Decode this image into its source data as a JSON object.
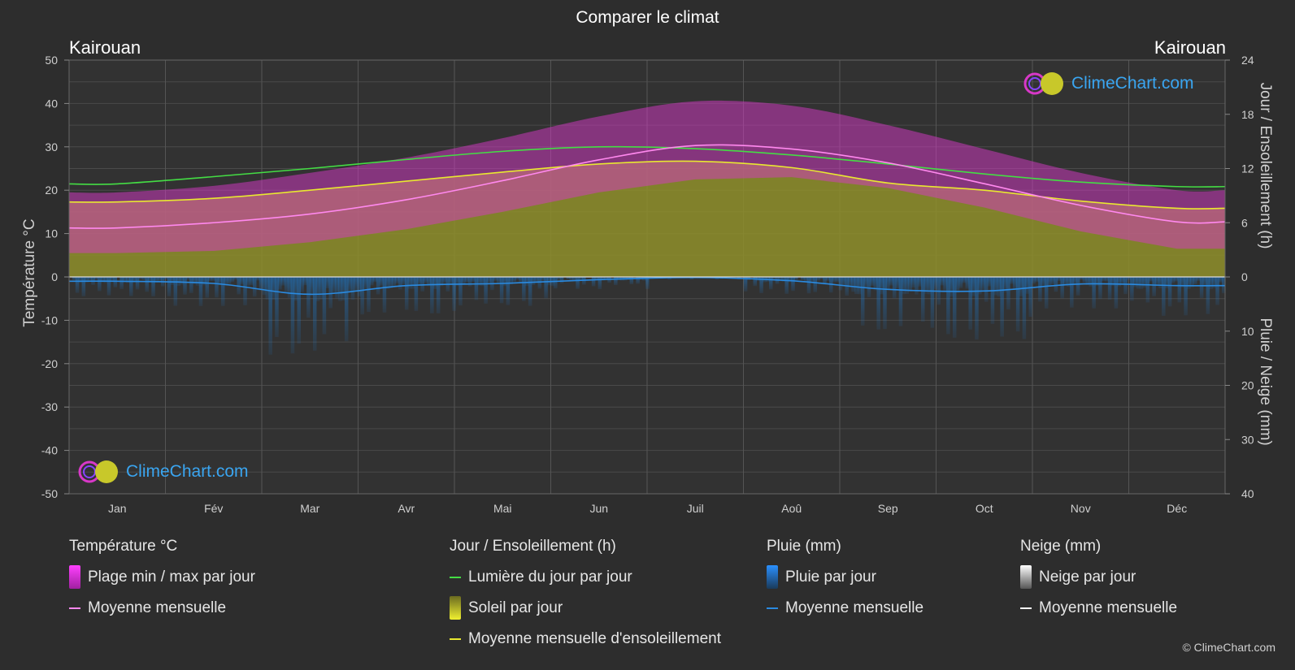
{
  "header": {
    "title": "Comparer le climat",
    "location_left": "Kairouan",
    "location_right": "Kairouan"
  },
  "axes": {
    "left_title": "Température °C",
    "right_top_title": "Jour / Ensoleillement (h)",
    "right_bottom_title": "Pluie / Neige (mm)",
    "left_ticks": [
      "50",
      "40",
      "30",
      "20",
      "10",
      "0",
      "-10",
      "-20",
      "-30",
      "-40",
      "-50"
    ],
    "right_top_ticks": [
      "24",
      "18",
      "12",
      "6",
      "0"
    ],
    "right_bottom_ticks": [
      "10",
      "20",
      "30",
      "40"
    ]
  },
  "legend": {
    "temperature": {
      "title": "Température °C",
      "range_label": "Plage min / max par jour",
      "mean_label": "Moyenne mensuelle"
    },
    "sun": {
      "title": "Jour / Ensoleillement (h)",
      "daylight_label": "Lumière du jour par jour",
      "sun_label": "Soleil par jour",
      "sun_mean_label": "Moyenne mensuelle d'ensoleillement"
    },
    "rain": {
      "title": "Pluie (mm)",
      "daily_label": "Pluie par jour",
      "mean_label": "Moyenne mensuelle"
    },
    "snow": {
      "title": "Neige (mm)",
      "daily_label": "Neige par jour",
      "mean_label": "Moyenne mensuelle"
    }
  },
  "branding": {
    "logo_text": "ClimeChart.com",
    "copyright": "© ClimeChart.com"
  },
  "colors": {
    "background": "#2d2d2d",
    "temp_range": "#d838c8",
    "temp_mean": "#ff88ee",
    "daylight": "#44dd44",
    "sun_fill": "#8f8f2a",
    "sun_mean": "#e8e830",
    "rain": "#1e78c8",
    "rain_mean": "#2a8ae0",
    "snow_mean": "#ffffff"
  },
  "chart_data": {
    "type": "area",
    "categories": [
      "Jan",
      "Fév",
      "Mar",
      "Avr",
      "Mai",
      "Jun",
      "Juil",
      "Aoû",
      "Sep",
      "Oct",
      "Nov",
      "Déc"
    ],
    "ylim_temperature": [
      -50,
      50
    ],
    "ylim_hours": [
      0,
      24
    ],
    "ylim_precip_mm": [
      0,
      40
    ],
    "grid": true,
    "series": [
      {
        "name": "Moyenne mensuelle",
        "unit": "°C",
        "values": [
          11.3,
          12.5,
          14.5,
          17.8,
          22.2,
          27.0,
          30.3,
          29.5,
          26.3,
          21.5,
          16.5,
          12.7
        ]
      },
      {
        "name": "Plage min / max par jour",
        "unit": "°C",
        "min": [
          5.5,
          6.0,
          8.0,
          11.0,
          15.0,
          19.5,
          22.5,
          23.0,
          20.5,
          16.0,
          10.5,
          6.5
        ],
        "max": [
          19.5,
          21.0,
          24.0,
          27.5,
          32.0,
          37.0,
          40.5,
          39.5,
          35.0,
          29.5,
          24.0,
          20.0
        ]
      },
      {
        "name": "Lumière du jour par jour",
        "unit": "h",
        "values": [
          10.3,
          11.1,
          12.0,
          13.0,
          13.9,
          14.4,
          14.2,
          13.5,
          12.5,
          11.4,
          10.5,
          10.0
        ]
      },
      {
        "name": "Soleil par jour",
        "unit": "h",
        "values": [
          8.3,
          8.7,
          9.6,
          10.6,
          11.6,
          12.5,
          12.8,
          12.1,
          10.4,
          9.6,
          8.4,
          7.6
        ]
      },
      {
        "name": "Pluie — Moyenne mensuelle",
        "unit": "mm",
        "values": [
          0.8,
          1.2,
          3.2,
          1.6,
          1.2,
          0.5,
          0.1,
          0.7,
          2.3,
          2.6,
          1.3,
          1.6
        ]
      }
    ]
  }
}
